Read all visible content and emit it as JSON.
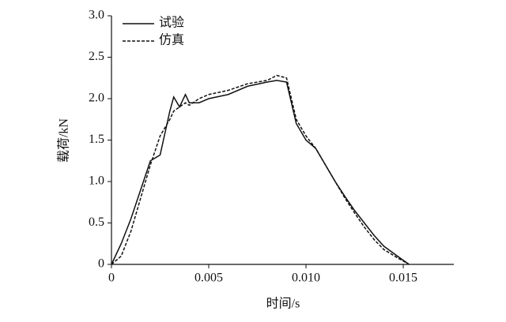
{
  "chart_data": {
    "type": "line",
    "x_label": "时间/s",
    "y_label": "载荷/kN",
    "x": [
      0,
      0.0005,
      0.001,
      0.0015,
      0.002,
      0.0025,
      0.003,
      0.0032,
      0.0035,
      0.0038,
      0.004,
      0.0045,
      0.005,
      0.006,
      0.007,
      0.008,
      0.0085,
      0.009,
      0.0095,
      0.01,
      0.0105,
      0.011,
      0.0115,
      0.012,
      0.0125,
      0.013,
      0.0135,
      0.014,
      0.0147,
      0.0153
    ],
    "series": [
      {
        "name": "试验",
        "color": "#111111",
        "linestyle": "solid",
        "values": [
          0,
          0.25,
          0.55,
          0.9,
          1.25,
          1.32,
          1.85,
          2.02,
          1.9,
          2.05,
          1.95,
          1.95,
          2.0,
          2.05,
          2.15,
          2.2,
          2.22,
          2.2,
          1.7,
          1.5,
          1.4,
          1.2,
          1.0,
          0.82,
          0.65,
          0.5,
          0.35,
          0.22,
          0.1,
          0
        ]
      },
      {
        "name": "仿真",
        "color": "#111111",
        "linestyle": "dashed",
        "values": [
          0,
          0.1,
          0.4,
          0.8,
          1.2,
          1.55,
          1.75,
          1.85,
          1.9,
          1.95,
          1.92,
          2.0,
          2.05,
          2.1,
          2.18,
          2.22,
          2.28,
          2.25,
          1.75,
          1.55,
          1.4,
          1.2,
          1.0,
          0.8,
          0.62,
          0.45,
          0.3,
          0.18,
          0.08,
          0
        ]
      }
    ],
    "xlim": [
      0,
      0.0176
    ],
    "xticks": [
      0,
      0.005,
      {
        "value": 0.01,
        "label": "0.010"
      },
      0.015
    ],
    "ylim": [
      0,
      3.0
    ],
    "yticks": [
      0,
      0.5,
      {
        "value": 1.0,
        "label": "1.0"
      },
      1.5,
      {
        "value": 2.0,
        "label": "2.0"
      },
      2.5,
      {
        "value": 3.0,
        "label": "3.0"
      }
    ],
    "legend": "upper left",
    "grid": false
  }
}
